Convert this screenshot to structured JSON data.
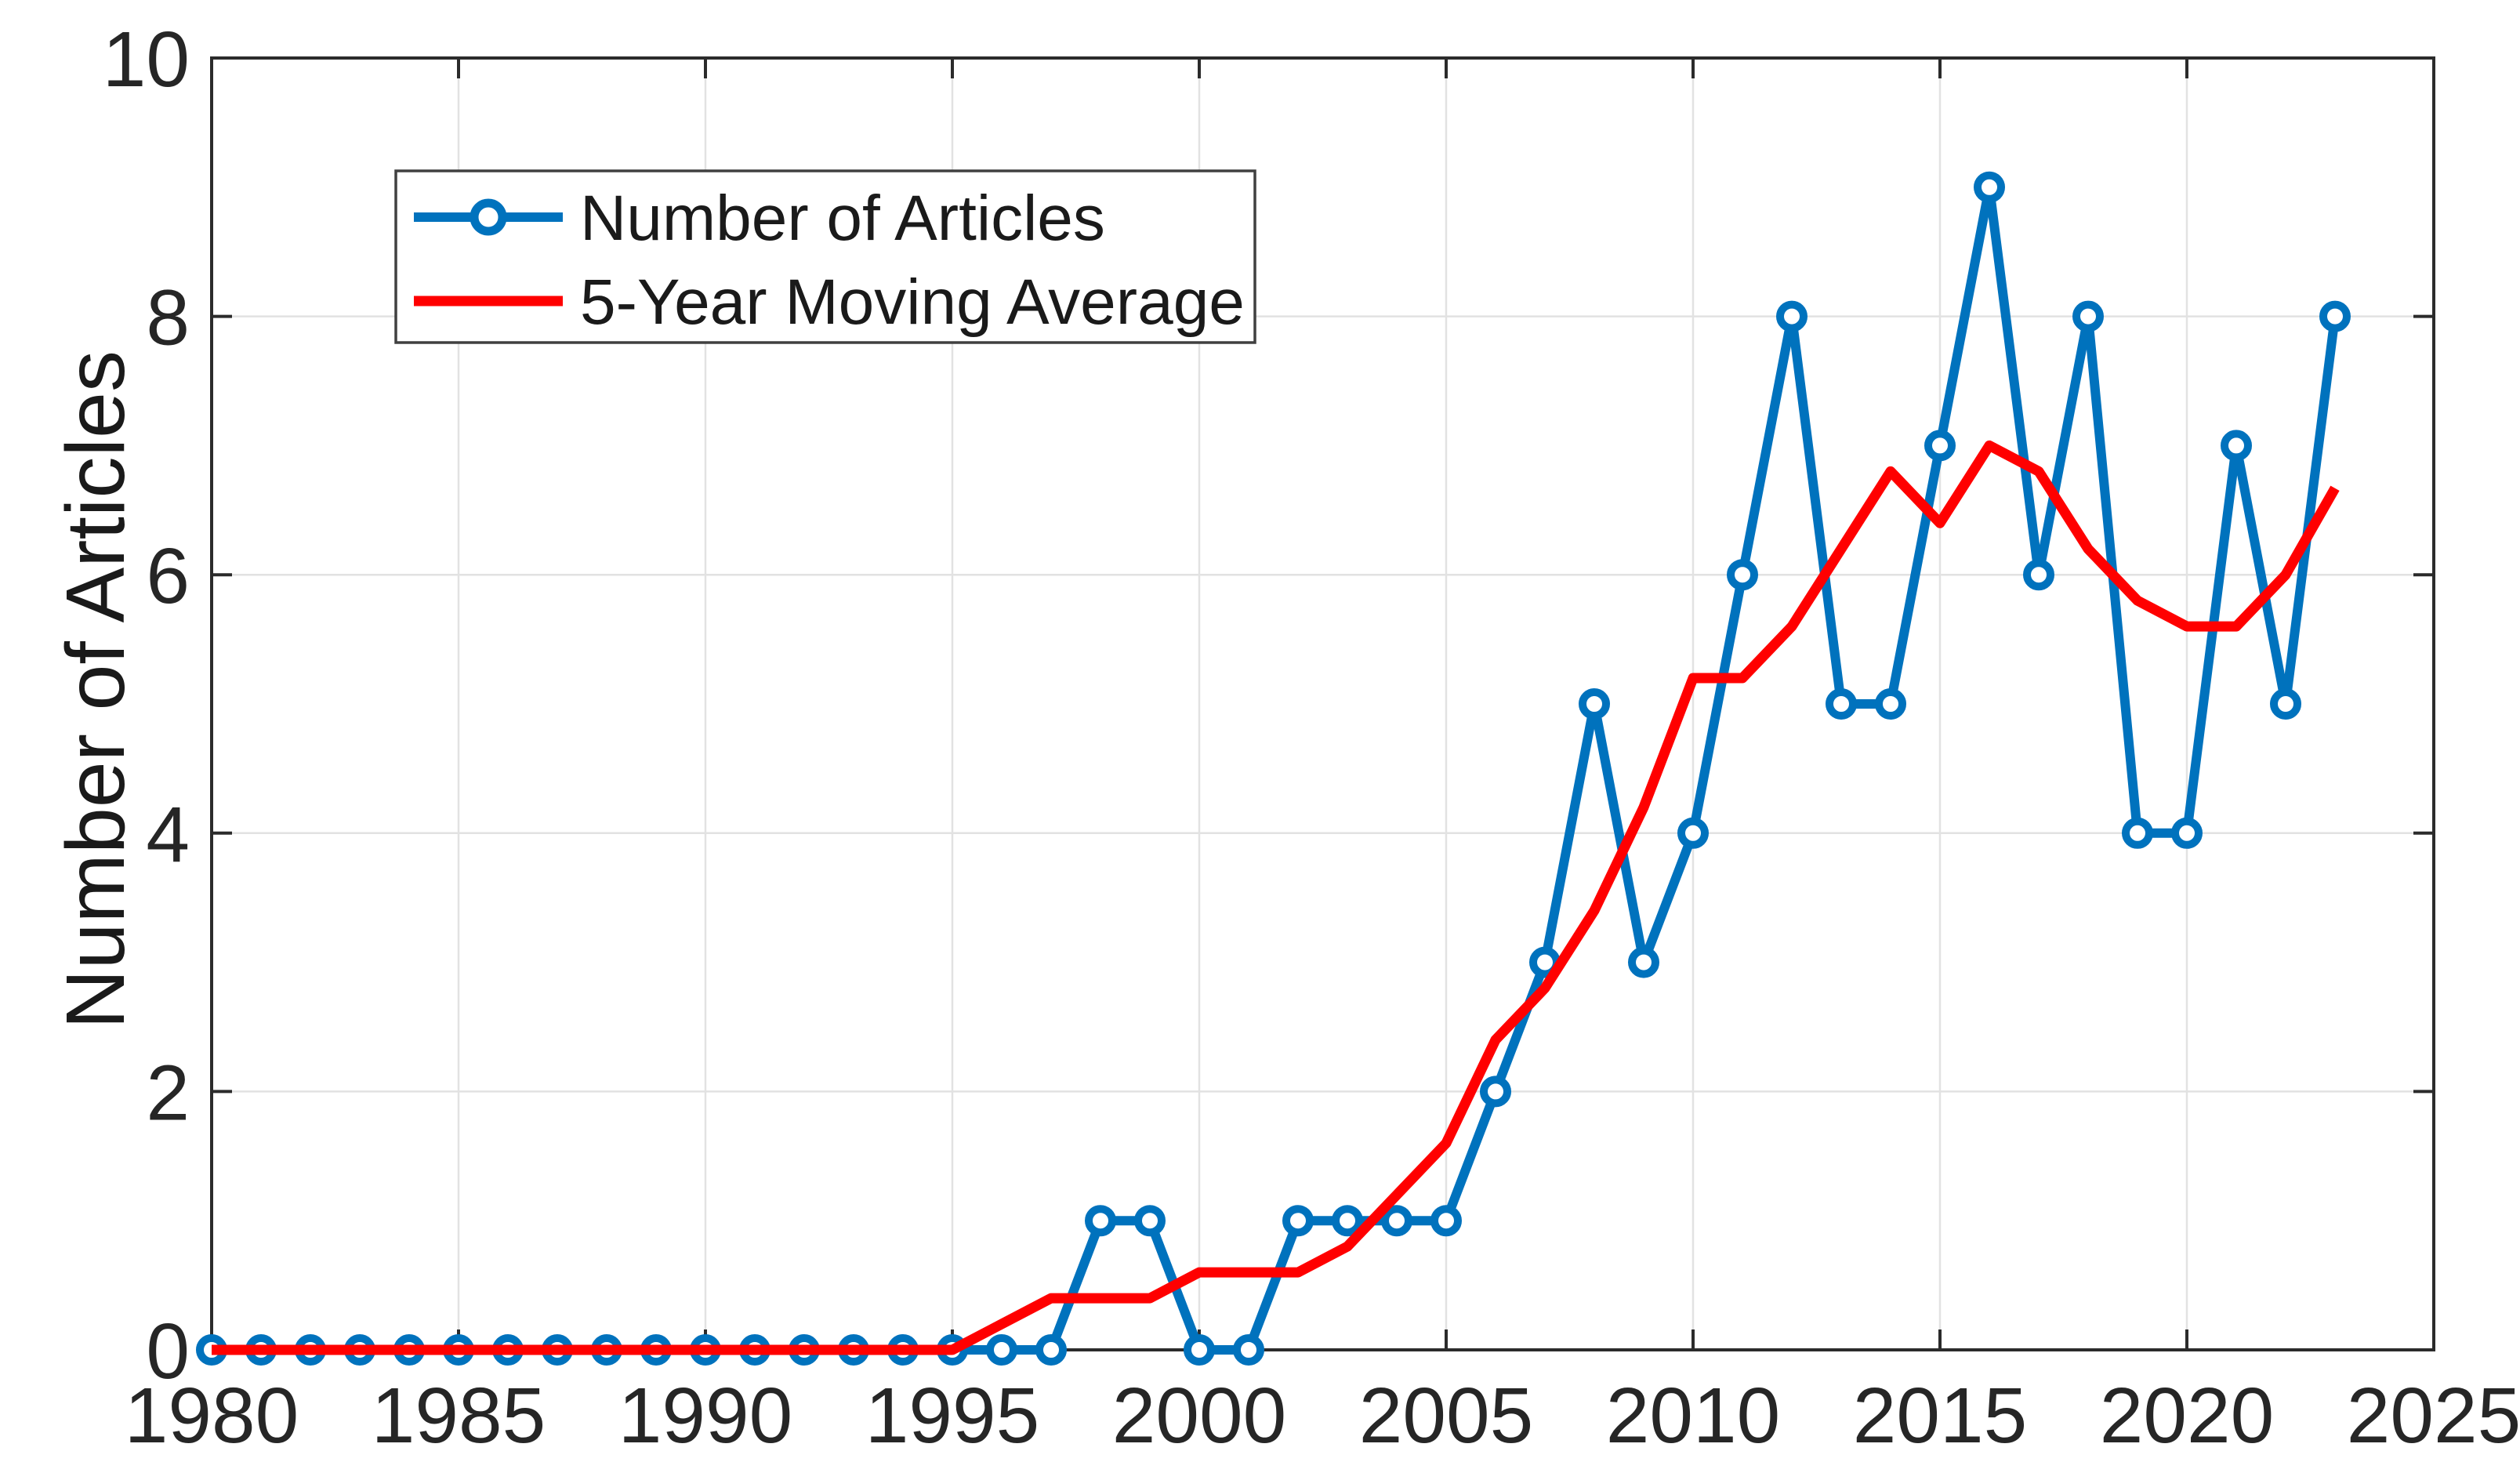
{
  "chart_data": {
    "type": "line",
    "title": "",
    "xlabel": "",
    "ylabel": "Number of Articles",
    "xlim": [
      1980,
      2025
    ],
    "ylim": [
      0,
      10
    ],
    "grid": true,
    "legend_position": "upper-left-inside",
    "x_ticks": [
      1980,
      1985,
      1990,
      1995,
      2000,
      2005,
      2010,
      2015,
      2020,
      2025
    ],
    "y_ticks": [
      0,
      2,
      4,
      6,
      8,
      10
    ],
    "x": [
      1980,
      1981,
      1982,
      1983,
      1984,
      1985,
      1986,
      1987,
      1988,
      1989,
      1990,
      1991,
      1992,
      1993,
      1994,
      1995,
      1996,
      1997,
      1998,
      1999,
      2000,
      2001,
      2002,
      2003,
      2004,
      2005,
      2006,
      2007,
      2008,
      2009,
      2010,
      2011,
      2012,
      2013,
      2014,
      2015,
      2016,
      2017,
      2018,
      2019,
      2020,
      2021,
      2022,
      2023
    ],
    "series": [
      {
        "name": "Number of Articles",
        "color": "#0072BD",
        "marker": "circle",
        "values": [
          0,
          0,
          0,
          0,
          0,
          0,
          0,
          0,
          0,
          0,
          0,
          0,
          0,
          0,
          0,
          0,
          0,
          0,
          1,
          1,
          0,
          0,
          1,
          1,
          1,
          1,
          2,
          3,
          5,
          3,
          4,
          6,
          8,
          5,
          5,
          7,
          9,
          6,
          8,
          4,
          4,
          7,
          5,
          8
        ]
      },
      {
        "name": "5-Year Moving Average",
        "color": "#ff0000",
        "marker": "none",
        "values": [
          0,
          0,
          0,
          0,
          0,
          0,
          0,
          0,
          0,
          0,
          0,
          0,
          0,
          0,
          0,
          0,
          0.2,
          0.4,
          0.4,
          0.4,
          0.6,
          0.6,
          0.6,
          0.8,
          1.2,
          1.6,
          2.4,
          2.8,
          3.4,
          4.2,
          5.2,
          5.2,
          5.6,
          6.2,
          6.8,
          6.4,
          7,
          6.8,
          6.2,
          5.8,
          5.6,
          5.6,
          6,
          6.67
        ]
      }
    ]
  }
}
